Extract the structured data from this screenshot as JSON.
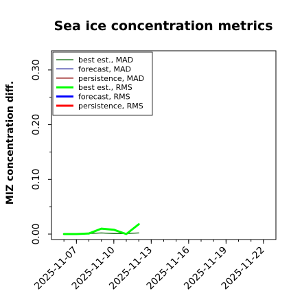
{
  "chart_data": {
    "type": "line",
    "title": "Sea ice concentration metrics",
    "xlabel": "",
    "ylabel": "MIZ concentration diff.",
    "x_type": "date",
    "xlim": [
      "2025-11-05",
      "2025-11-23"
    ],
    "ylim": [
      -0.01,
      0.335
    ],
    "y_ticks": [
      0.0,
      0.1,
      0.2,
      0.3
    ],
    "y_tick_labels": [
      "0.00",
      "0.10",
      "0.20",
      "0.30"
    ],
    "x_ticks": [
      "2025-11-07",
      "2025-11-10",
      "2025-11-13",
      "2025-11-16",
      "2025-11-19",
      "2025-11-22"
    ],
    "x_tick_labels": [
      "2025-11-07",
      "2025-11-10",
      "2025-11-13",
      "2025-11-16",
      "2025-11-19",
      "2025-11-22"
    ],
    "x_tick_colors": [
      "#000000",
      "#000000",
      "#008000",
      "#000000",
      "#000000",
      "#000000"
    ],
    "grid": false,
    "legend_position": "top-left",
    "series": [
      {
        "name": "best est., MAD",
        "color": "#006400",
        "width": 1.3,
        "x": [
          "2025-11-06",
          "2025-11-07",
          "2025-11-08",
          "2025-11-09",
          "2025-11-10",
          "2025-11-11",
          "2025-11-12"
        ],
        "y": [
          0.0,
          0.0,
          0.001,
          0.002,
          0.001,
          0.001,
          0.002
        ]
      },
      {
        "name": "forecast,  MAD",
        "color": "#00008b",
        "width": 1.3,
        "x": [],
        "y": []
      },
      {
        "name": "persistence, MAD",
        "color": "#8b0000",
        "width": 1.3,
        "x": [],
        "y": []
      },
      {
        "name": "best est., RMS",
        "color": "#00ff00",
        "width": 3,
        "x": [
          "2025-11-06",
          "2025-11-07",
          "2025-11-08",
          "2025-11-09",
          "2025-11-10",
          "2025-11-11",
          "2025-11-12"
        ],
        "y": [
          0.0,
          0.0,
          0.001,
          0.01,
          0.008,
          0.0,
          0.018
        ]
      },
      {
        "name": "forecast,  RMS",
        "color": "#0000ff",
        "width": 3,
        "x": [],
        "y": []
      },
      {
        "name": "persistence, RMS",
        "color": "#ff0000",
        "width": 3,
        "x": [],
        "y": []
      }
    ]
  }
}
